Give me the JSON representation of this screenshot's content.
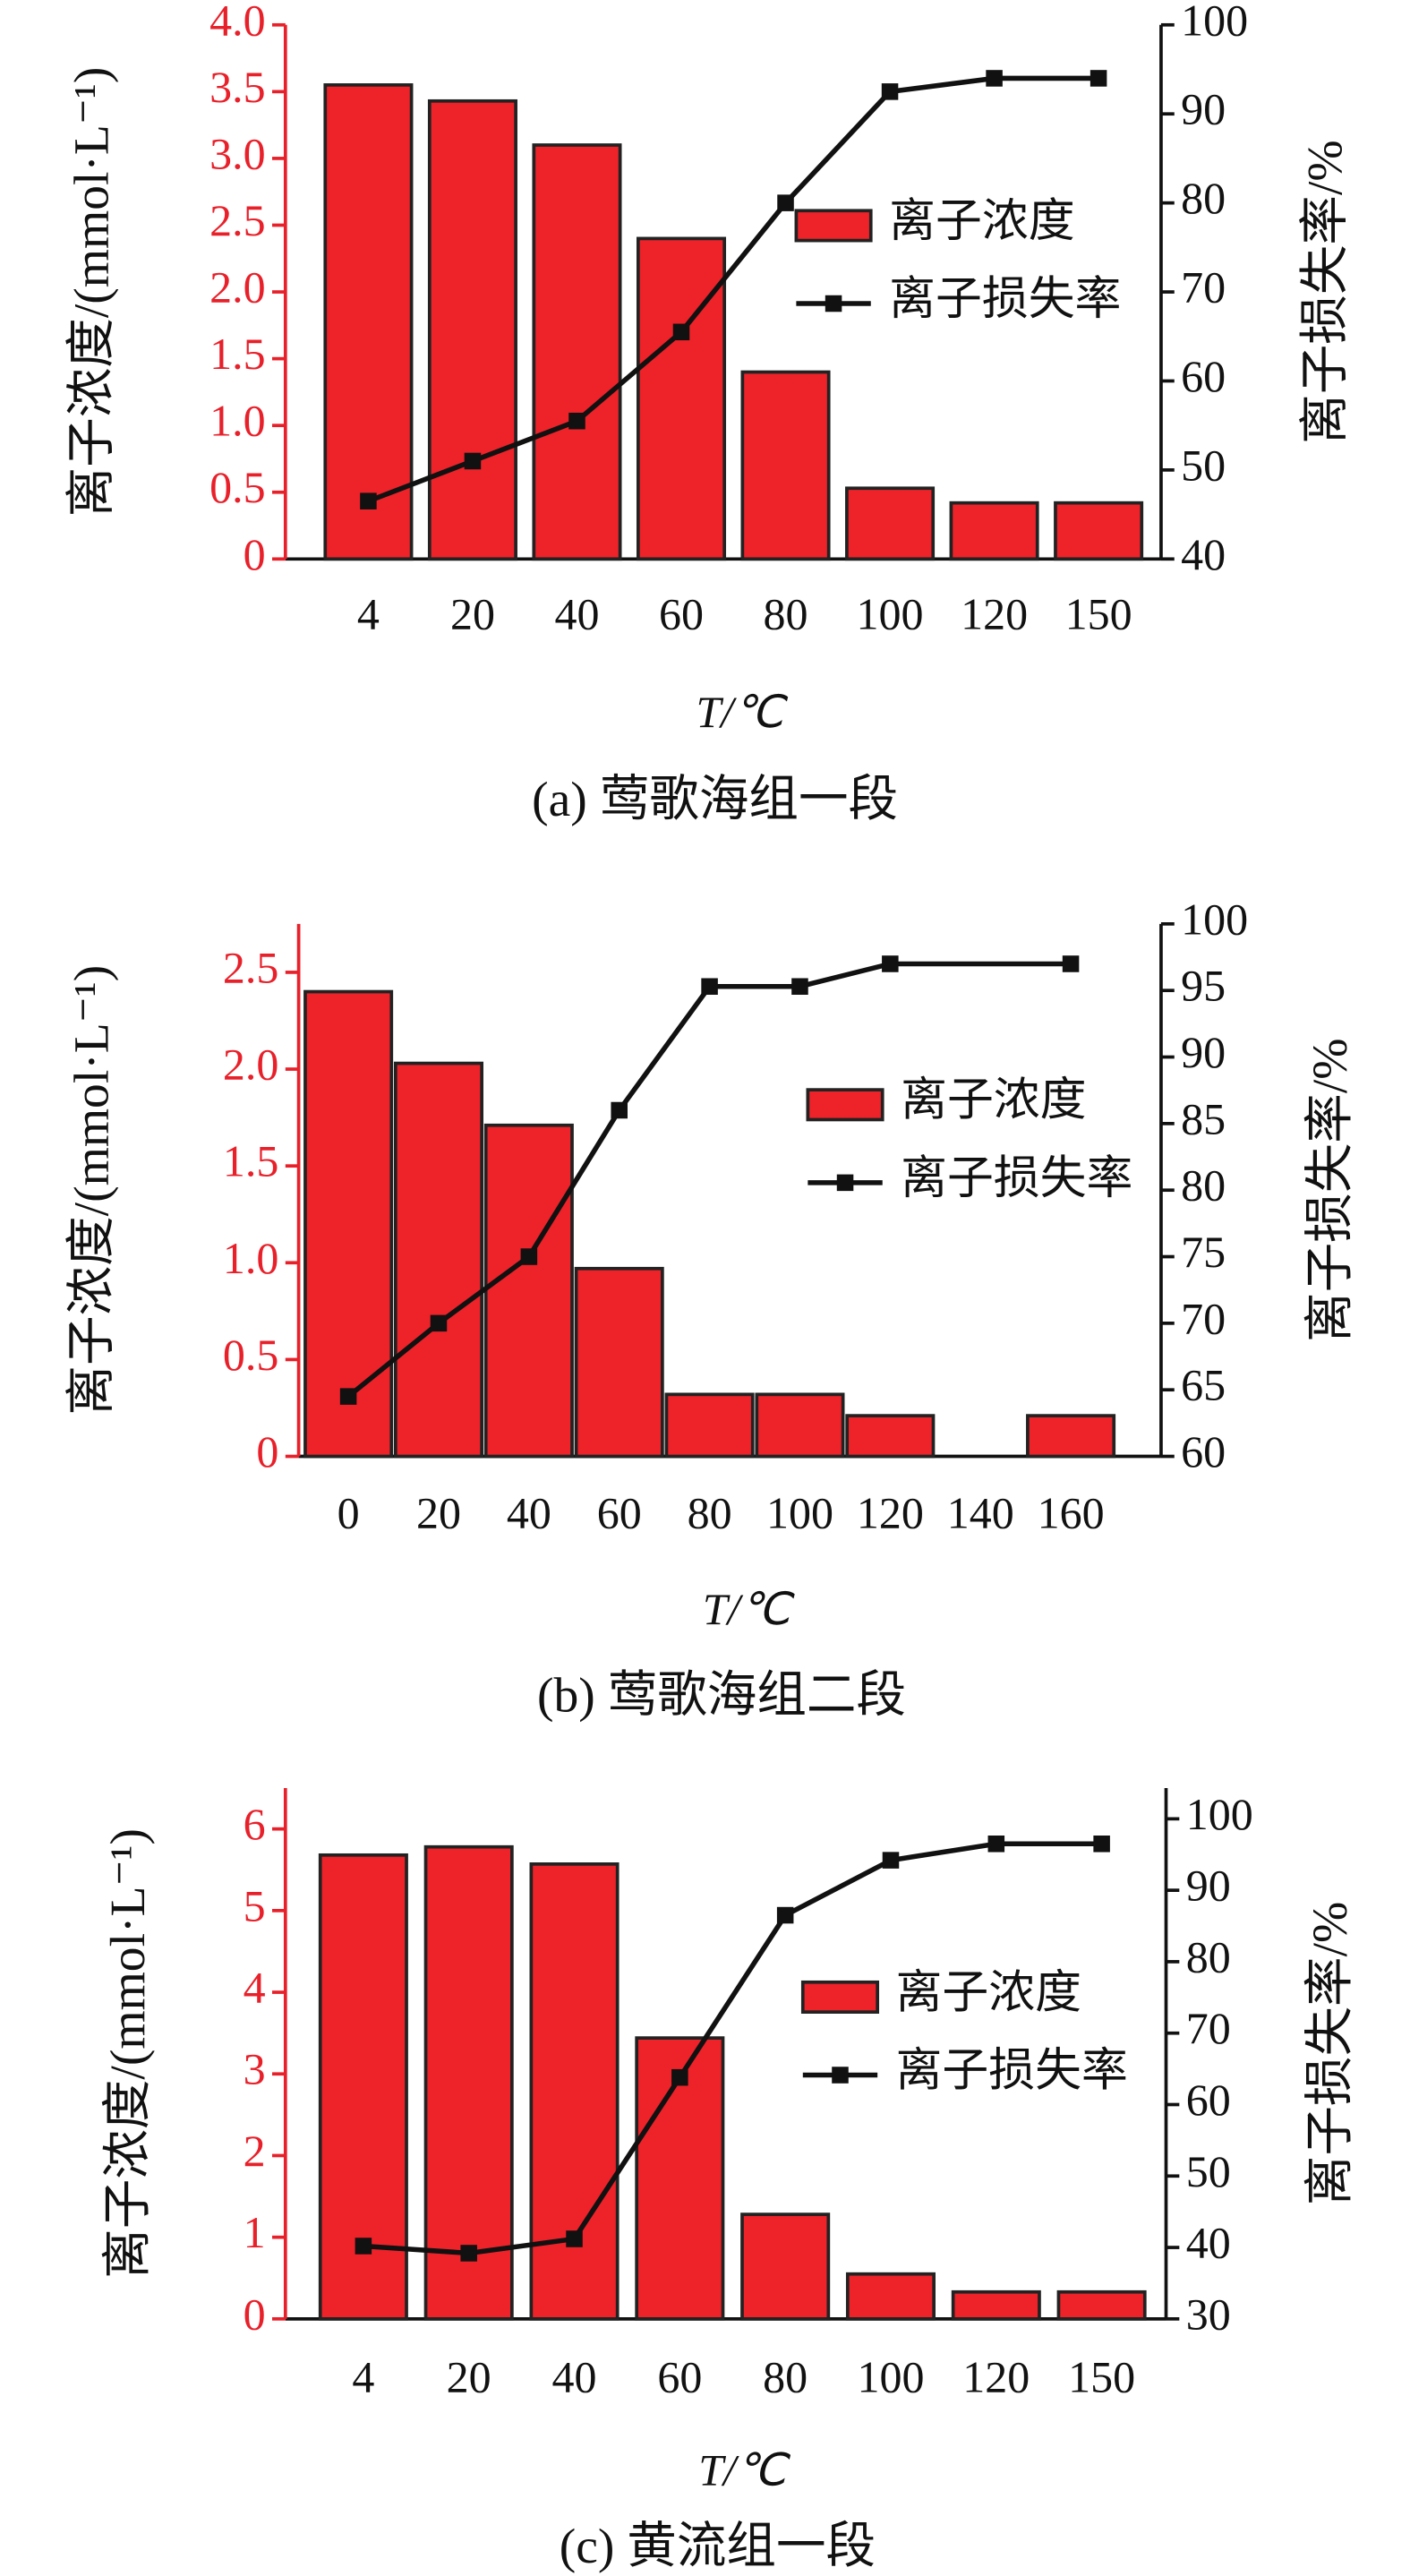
{
  "chart_data": [
    {
      "type": "bar_line",
      "title": "(a) 莺歌海组一段",
      "xlabel": "T/℃",
      "ylabel": "离子浓度/(mmol·L⁻¹)",
      "y2label": "离子损失率/%",
      "categories": [
        "4",
        "20",
        "40",
        "60",
        "80",
        "100",
        "120",
        "150"
      ],
      "series": [
        {
          "name": "离子浓度",
          "type": "bar",
          "color": "#ee2229",
          "values": [
            3.55,
            3.43,
            3.1,
            2.4,
            1.4,
            0.53,
            0.42,
            0.42
          ]
        },
        {
          "name": "离子损失率",
          "type": "line",
          "axis": "y2",
          "color": "#111111",
          "values": [
            46.5,
            51,
            55.5,
            65.5,
            80,
            92.5,
            94,
            94
          ]
        }
      ],
      "ylim": [
        0,
        4
      ],
      "yticks": [
        0,
        0.5,
        {
          "value": 1,
          "label": "1.0"
        },
        1.5,
        {
          "value": 2,
          "label": "2.0"
        },
        2.5,
        {
          "value": 3,
          "label": "3.0"
        },
        3.5,
        {
          "value": 4,
          "label": "4.0"
        }
      ],
      "y2lim": [
        40,
        100
      ],
      "y2ticks": [
        40,
        50,
        60,
        70,
        80,
        90,
        100
      ],
      "y_axis_color": "#e8202a"
    },
    {
      "type": "bar_line",
      "title": "(b) 莺歌海组二段",
      "xlabel": "T/℃",
      "ylabel": "离子浓度/(mmol·L⁻¹)",
      "y2label": "离子损失率/%",
      "x": [
        0,
        20,
        40,
        60,
        80,
        100,
        120,
        140,
        160
      ],
      "xlim": [
        -11,
        180
      ],
      "xticks": [
        0,
        20,
        40,
        60,
        80,
        100,
        120,
        140,
        160
      ],
      "series": [
        {
          "name": "离子浓度",
          "type": "bar",
          "color": "#ee2229",
          "values": [
            2.4,
            2.03,
            1.71,
            0.97,
            0.32,
            0.32,
            0.21,
            null,
            0.21
          ]
        },
        {
          "name": "离子损失率",
          "type": "line",
          "axis": "y2",
          "color": "#111111",
          "x": [
            0,
            20,
            40,
            60,
            80,
            100,
            120,
            160
          ],
          "values": [
            64.5,
            70,
            75,
            86,
            95.3,
            95.3,
            97,
            97
          ]
        }
      ],
      "ylim": [
        0,
        2.75
      ],
      "yticks": [
        0,
        0.5,
        {
          "value": 1,
          "label": "1.0"
        },
        1.5,
        {
          "value": 2,
          "label": "2.0"
        },
        2.5
      ],
      "y2lim": [
        60,
        100
      ],
      "y2ticks": [
        60,
        65,
        70,
        75,
        80,
        85,
        90,
        95,
        100
      ],
      "y_axis_color": "#e8202a"
    },
    {
      "type": "bar_line",
      "title": "(c) 黄流组一段",
      "xlabel": "T/℃",
      "ylabel": "离子浓度/(mmol·L⁻¹)",
      "y2label": "离子损失率/%",
      "categories": [
        "4",
        "20",
        "40",
        "60",
        "80",
        "100",
        "120",
        "150"
      ],
      "series": [
        {
          "name": "离子浓度",
          "type": "bar",
          "color": "#ee2229",
          "values": [
            5.68,
            5.78,
            5.57,
            3.44,
            1.28,
            0.55,
            0.33,
            0.33
          ]
        },
        {
          "name": "离子损失率",
          "type": "line",
          "axis": "y2",
          "color": "#111111",
          "values": [
            40.2,
            39.2,
            41.2,
            63.8,
            86.5,
            94.2,
            96.5,
            96.5
          ]
        }
      ],
      "ylim": [
        0,
        6.5
      ],
      "yticks": [
        0,
        1,
        2,
        3,
        4,
        5,
        6
      ],
      "y2lim": [
        30,
        104.3
      ],
      "y2ticks": [
        30,
        40,
        50,
        60,
        70,
        80,
        90,
        100
      ],
      "y_axis_color": "#e8202a"
    }
  ]
}
